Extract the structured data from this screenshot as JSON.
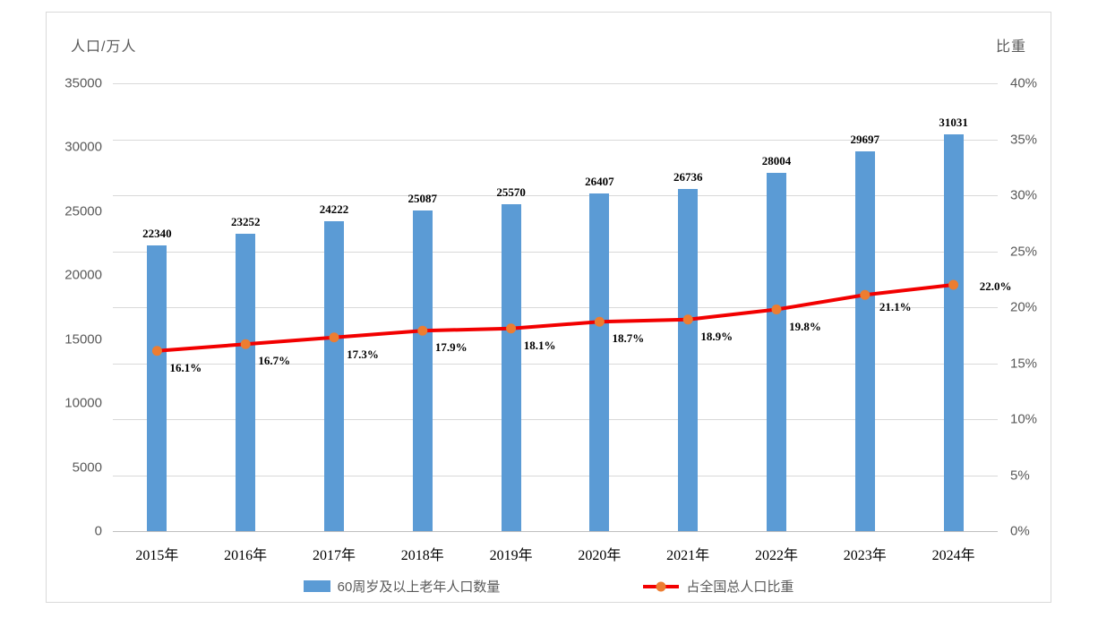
{
  "chart_data": {
    "type": "bar+line",
    "categories": [
      "2015年",
      "2016年",
      "2017年",
      "2018年",
      "2019年",
      "2020年",
      "2021年",
      "2022年",
      "2023年",
      "2024年"
    ],
    "series": [
      {
        "name": "60周岁及以上老年人口数量",
        "type": "bar",
        "axis": "left",
        "values": [
          22340,
          23252,
          24222,
          25087,
          25570,
          26407,
          26736,
          28004,
          29697,
          31031
        ],
        "data_labels": [
          "22340",
          "23252",
          "24222",
          "25087",
          "25570",
          "26407",
          "26736",
          "28004",
          "29697",
          "31031"
        ],
        "color": "#5b9bd5"
      },
      {
        "name": "占全国总人口比重",
        "type": "line",
        "axis": "right",
        "values": [
          16.1,
          16.7,
          17.3,
          17.9,
          18.1,
          18.7,
          18.9,
          19.8,
          21.1,
          22.0
        ],
        "data_labels": [
          "16.1%",
          "16.7%",
          "17.3%",
          "17.9%",
          "18.1%",
          "18.7%",
          "18.9%",
          "19.8%",
          "21.1%",
          "22.0%"
        ],
        "line_color": "#f20000",
        "marker_color": "#ed7d31"
      }
    ],
    "left_axis": {
      "title": "人口/万人",
      "min": 0,
      "max": 35000,
      "step": 5000,
      "tick_labels": [
        "0",
        "5000",
        "10000",
        "15000",
        "20000",
        "25000",
        "30000",
        "35000"
      ]
    },
    "right_axis": {
      "title": "比重",
      "min": 0,
      "max": 40,
      "step": 5,
      "tick_labels": [
        "0%",
        "5%",
        "10%",
        "15%",
        "20%",
        "25%",
        "30%",
        "35%",
        "40%"
      ]
    },
    "x_axis": {
      "tick_labels": [
        "2015年",
        "2016年",
        "2017年",
        "2018年",
        "2019年",
        "2020年",
        "2021年",
        "2022年",
        "2023年",
        "2024年"
      ]
    },
    "grid": true,
    "legend_position": "bottom",
    "colors": {
      "bar": "#5b9bd5",
      "line": "#f20000",
      "marker": "#ed7d31",
      "gridline": "#d9d9d9",
      "axis_line": "#bfbfbf",
      "tick_text": "#595959",
      "label_text": "#000000",
      "frame_border": "#d9d9d9",
      "background": "#ffffff"
    }
  }
}
